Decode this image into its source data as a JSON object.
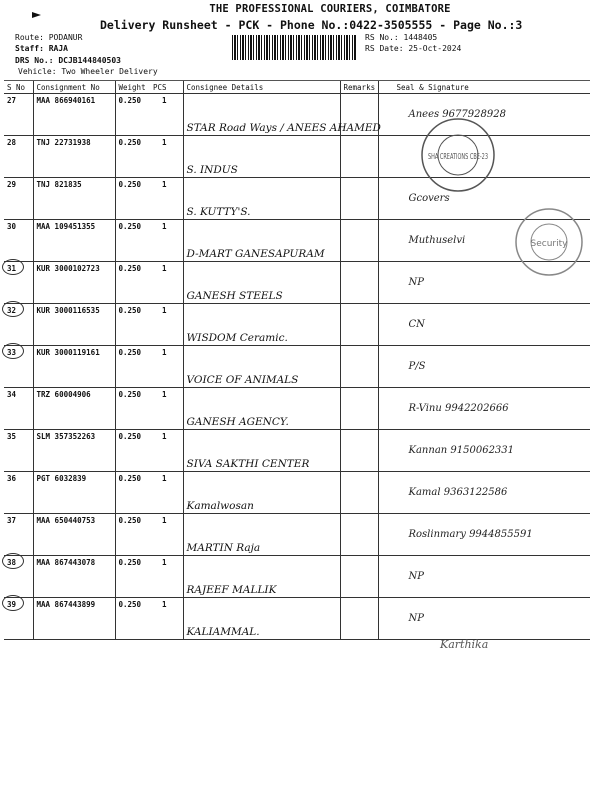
{
  "header": {
    "company": "THE PROFESSIONAL COURIERS, COIMBATORE",
    "subtitle": "Delivery Runsheet - PCK - Phone No.:0422-3505555 - Page No.:3",
    "route": "Route: PODANUR",
    "staff": "Staff: RAJA",
    "drs": "DRS No.: DCJB144840503",
    "vehicle": "Vehicle: Two Wheeler Delivery",
    "rs_no": "RS No.: 1448405",
    "rs_date": "RS Date: 25-Oct-2024"
  },
  "columns": [
    "S No",
    "Consignment No",
    "Weight",
    "PCS",
    "Consignee Details",
    "Remarks",
    "Seal & Signature"
  ],
  "rows": [
    {
      "sno": "27",
      "cn": "MAA 866940161",
      "wt": "0.250",
      "pcs": "1",
      "consignee": "STAR Road Ways / ANEES AHAMED",
      "remarks": "",
      "sig": "Anees 9677928928",
      "circled": false
    },
    {
      "sno": "28",
      "cn": "TNJ 22731938",
      "wt": "0.250",
      "pcs": "1",
      "consignee": "S. INDUS",
      "remarks": "",
      "sig": "",
      "circled": false
    },
    {
      "sno": "29",
      "cn": "TNJ 821835",
      "wt": "0.250",
      "pcs": "1",
      "consignee": "S. KUTTY'S.",
      "remarks": "",
      "sig": "Gcovers",
      "circled": false
    },
    {
      "sno": "30",
      "cn": "MAA 109451355",
      "wt": "0.250",
      "pcs": "1",
      "consignee": "D-MART GANESAPURAM",
      "remarks": "",
      "sig": "Muthuselvi",
      "circled": false
    },
    {
      "sno": "31",
      "cn": "KUR 3000102723",
      "wt": "0.250",
      "pcs": "1",
      "consignee": "GANESH STEELS",
      "remarks": "",
      "sig": "NP",
      "circled": true
    },
    {
      "sno": "32",
      "cn": "KUR 3000116535",
      "wt": "0.250",
      "pcs": "1",
      "consignee": "WISDOM Ceramic.",
      "remarks": "",
      "sig": "CN",
      "circled": true
    },
    {
      "sno": "33",
      "cn": "KUR 3000119161",
      "wt": "0.250",
      "pcs": "1",
      "consignee": "VOICE OF ANIMALS",
      "remarks": "",
      "sig": "P/S",
      "circled": true
    },
    {
      "sno": "34",
      "cn": "TRZ 60004906",
      "wt": "0.250",
      "pcs": "1",
      "consignee": "GANESH AGENCY.",
      "remarks": "",
      "sig": "R-Vinu 9942202666",
      "circled": false
    },
    {
      "sno": "35",
      "cn": "SLM 357352263",
      "wt": "0.250",
      "pcs": "1",
      "consignee": "SIVA SAKTHI CENTER",
      "remarks": "",
      "sig": "Kannan 9150062331",
      "circled": false
    },
    {
      "sno": "36",
      "cn": "PGT 6032839",
      "wt": "0.250",
      "pcs": "1",
      "consignee": "Kamalwosan",
      "remarks": "",
      "sig": "Kamal 9363122586",
      "circled": false
    },
    {
      "sno": "37",
      "cn": "MAA 650440753",
      "wt": "0.250",
      "pcs": "1",
      "consignee": "MARTIN Raja",
      "remarks": "",
      "sig": "Roslinmary 9944855591",
      "circled": false
    },
    {
      "sno": "38",
      "cn": "MAA 867443078",
      "wt": "0.250",
      "pcs": "1",
      "consignee": "RAJEEF MALLIK",
      "remarks": "",
      "sig": "NP",
      "circled": true
    },
    {
      "sno": "39",
      "cn": "MAA 867443899",
      "wt": "0.250",
      "pcs": "1",
      "consignee": "KALIAMMAL.",
      "remarks": "",
      "sig": "NP",
      "circled": true
    }
  ],
  "stamps": {
    "seal1": "SHA CREATIONS CBE-23",
    "seal2": "Security"
  },
  "footer_signature": "Karthika"
}
